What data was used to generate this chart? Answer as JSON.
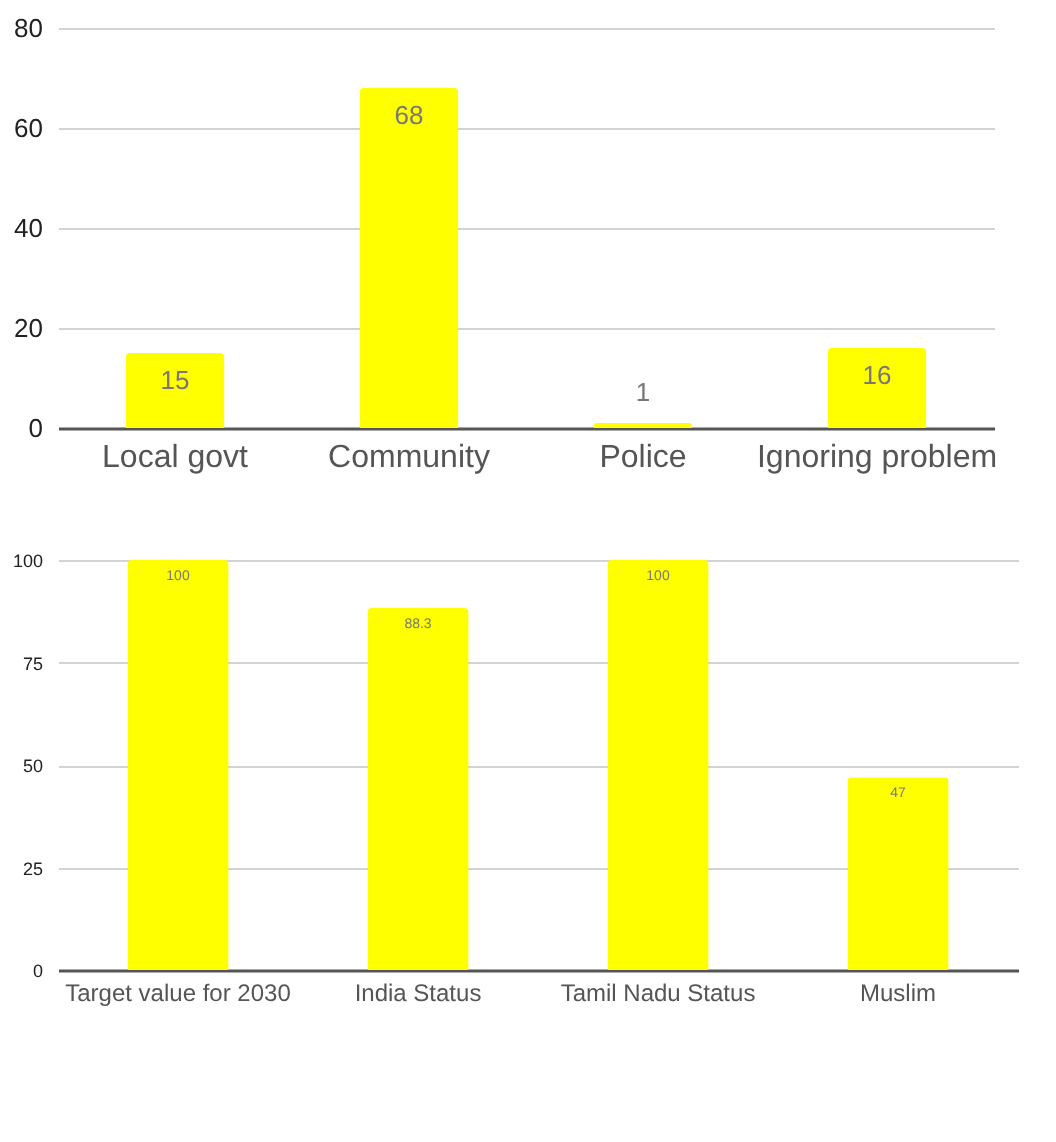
{
  "chart_data": [
    {
      "type": "bar",
      "categories": [
        "Local govt",
        "Community",
        "Police",
        "Ignoring problem"
      ],
      "values": [
        15,
        68,
        1,
        16
      ],
      "color": "#ffff00",
      "ylim": [
        0,
        80
      ],
      "yticks": [
        0,
        20,
        40,
        60,
        80
      ],
      "grid": "y",
      "data_labels": true
    },
    {
      "type": "bar",
      "categories": [
        "Target value for 2030",
        "India Status",
        "Tamil Nadu Status",
        "Muslim"
      ],
      "values": [
        100,
        88.3,
        100,
        47
      ],
      "color": "#ffff00",
      "ylim": [
        0,
        100
      ],
      "yticks": [
        0,
        25,
        50,
        75,
        100
      ],
      "grid": "y",
      "data_labels": true
    }
  ]
}
